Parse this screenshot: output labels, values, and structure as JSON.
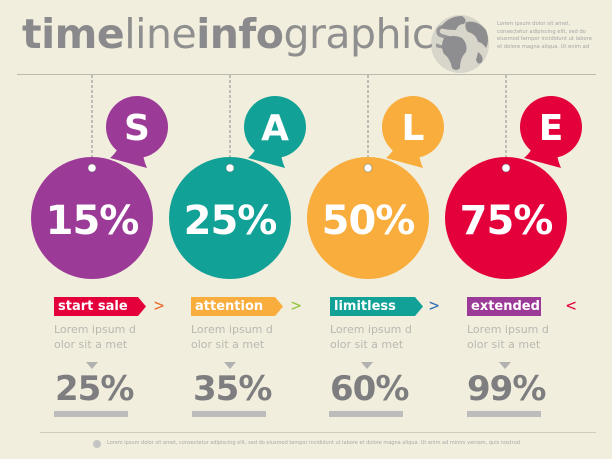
{
  "header": {
    "title_parts": [
      "time",
      "line",
      "info",
      "graphics"
    ],
    "blurb": "Lorem ipsum dolor sit amet, consectetur adipiscing elit, sed do eiusmod tempor incididunt ut labore et dolore magna aliqua. Ut enim ad",
    "globe_icon": "globe-icon"
  },
  "colors": {
    "purple": "#9b3a97",
    "teal": "#12a196",
    "orange": "#f8ad3c",
    "red": "#e3003b",
    "green": "#8dc63f",
    "blue": "#2f6fb7"
  },
  "steps": [
    {
      "letter": "S",
      "percent": "15%",
      "tag": "start sale",
      "desc": "Lorem ipsum d olor sit a met",
      "stat": "25%"
    },
    {
      "letter": "A",
      "percent": "25%",
      "tag": "attention",
      "desc": "Lorem ipsum d olor sit a met",
      "stat": "35%"
    },
    {
      "letter": "L",
      "percent": "50%",
      "tag": "limitless",
      "desc": "Lorem ipsum d olor sit a met",
      "stat": "60%"
    },
    {
      "letter": "E",
      "percent": "75%",
      "tag": "extended",
      "desc": "Lorem ipsum d olor sit a met",
      "stat": "99%"
    }
  ],
  "chevrons": [
    ">",
    ">",
    ">",
    "<"
  ],
  "footer": {
    "text": "Lorem ipsum dolor sit amet, consectetur adipiscing elit, sed do eiusmod tempor incididunt ut labore et dolore magna aliqua. Ut enim ad minim veniam, quis nostrud"
  }
}
